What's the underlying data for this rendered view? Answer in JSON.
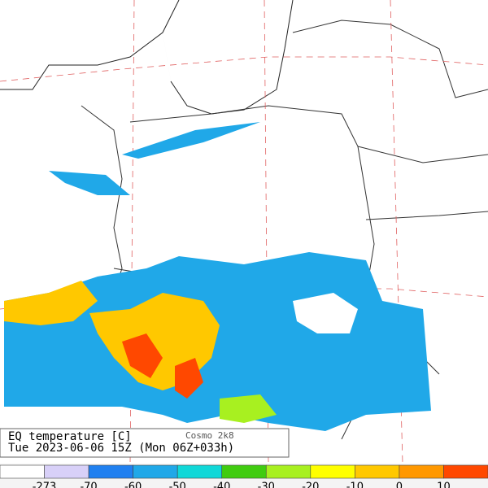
{
  "title": "EQ temperature [C]",
  "model": "Cosmo 2k8",
  "valid_time": "Tue 2023-06-06 15Z (Mon 06Z+033h)",
  "colorbar": {
    "colors": [
      "#ffffff",
      "#d8d0f8",
      "#2080f0",
      "#20a8e8",
      "#10d8d8",
      "#40cc10",
      "#a8f020",
      "#ffff00",
      "#ffc800",
      "#ff9800",
      "#ff4800"
    ],
    "labels": [
      -273,
      -70,
      -60,
      -50,
      -40,
      -30,
      -20,
      -10,
      0,
      10
    ]
  }
}
